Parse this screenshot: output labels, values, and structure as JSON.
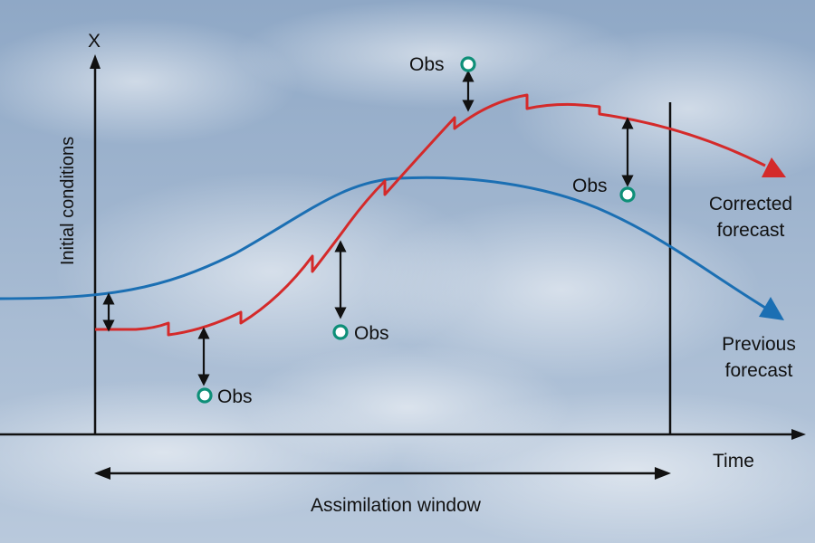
{
  "labels": {
    "y_axis_symbol": "X",
    "y_axis_title": "Initial conditions",
    "x_axis_title": "Time",
    "window_label": "Assimilation window",
    "corrected_line1": "Corrected",
    "corrected_line2": "forecast",
    "previous_line1": "Previous",
    "previous_line2": "forecast",
    "obs": "Obs"
  },
  "colors": {
    "corrected": "#d42a2a",
    "previous": "#1b6fb3",
    "obs_marker": "#0e8f78",
    "axes": "#111111",
    "sky_top": "#8fa8c6",
    "sky_bottom": "#b9c9dc"
  }
}
